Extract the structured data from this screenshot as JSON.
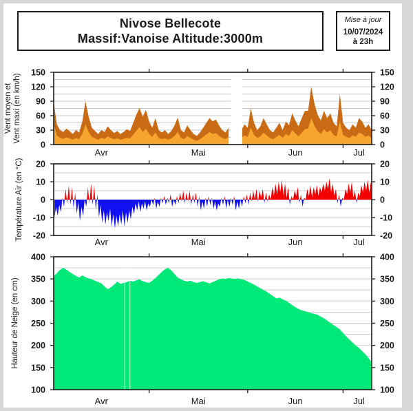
{
  "header": {
    "title_line1": "Nivose Bellecote",
    "title_line2": "Massif:Vanoise Altitude:3000m",
    "update_box": {
      "line1": "Mise à jour",
      "line2": "10/07/2024",
      "line3": "à 23h"
    }
  },
  "x_axis": {
    "month_labels": [
      "Avr",
      "Mai",
      "Jun",
      "Jul"
    ],
    "month_label_days": [
      15,
      45.5,
      76,
      96
    ],
    "month_tick_days": [
      30,
      61,
      91
    ],
    "domain_days": [
      0,
      101
    ],
    "start_date": "01/04",
    "end_date": "10/07"
  },
  "colors": {
    "wind_max": "#c96a14",
    "wind_mean": "#f6a52e",
    "temp_above": "#f40000",
    "temp_below": "#1010f0",
    "snow": "#00e878",
    "grid": "#c8c8c8",
    "frame": "#1b1b1b"
  },
  "chart_data": [
    {
      "type": "area",
      "title": "Vent moyen et Vent maxi (en km/h)",
      "ylabel_lines": [
        "Vent moyen et",
        "Vent maxi (en km/h)"
      ],
      "ylim": [
        0,
        150
      ],
      "ytick_step": 30,
      "grid_step": 15,
      "categories_unit": "day_index_from_Apr_1",
      "series": [
        {
          "name": "vent_maxi",
          "color_key": "wind_max",
          "values": [
            88,
            42,
            30,
            26,
            33,
            28,
            22,
            30,
            25,
            48,
            90,
            58,
            35,
            28,
            22,
            30,
            26,
            38,
            30,
            24,
            28,
            22,
            26,
            32,
            28,
            45,
            62,
            76,
            58,
            72,
            48,
            35,
            55,
            30,
            25,
            30,
            22,
            28,
            40,
            56,
            30,
            25,
            40,
            30,
            22,
            18,
            25,
            35,
            45,
            55,
            48,
            52,
            40,
            30,
            25,
            35,
            null,
            null,
            null,
            30,
            42,
            35,
            75,
            45,
            30,
            38,
            55,
            42,
            30,
            25,
            35,
            45,
            30,
            48,
            40,
            65,
            50,
            38,
            55,
            70,
            70,
            120,
            85,
            62,
            50,
            70,
            55,
            65,
            45,
            38,
            105,
            45,
            35,
            30,
            42,
            35,
            55,
            48,
            35,
            42,
            30
          ]
        },
        {
          "name": "vent_moyen",
          "color_key": "wind_mean",
          "values": [
            44,
            19,
            14,
            12,
            15,
            13,
            10,
            14,
            11,
            22,
            42,
            26,
            16,
            13,
            10,
            14,
            12,
            17,
            14,
            11,
            13,
            10,
            12,
            14,
            13,
            20,
            29,
            36,
            26,
            33,
            22,
            16,
            25,
            14,
            11,
            13,
            10,
            13,
            18,
            26,
            14,
            11,
            18,
            14,
            10,
            8,
            11,
            16,
            21,
            26,
            22,
            24,
            18,
            14,
            11,
            16,
            null,
            null,
            null,
            14,
            19,
            16,
            35,
            20,
            14,
            17,
            25,
            19,
            14,
            11,
            16,
            20,
            14,
            22,
            18,
            30,
            23,
            17,
            25,
            32,
            33,
            55,
            39,
            28,
            22,
            32,
            25,
            30,
            20,
            17,
            48,
            20,
            16,
            14,
            19,
            16,
            25,
            22,
            16,
            19,
            13
          ]
        }
      ]
    },
    {
      "type": "area_diverging",
      "title": "Température Air (en °C)",
      "ylabel_lines": [
        "Température Air (en °C)"
      ],
      "ylim": [
        -20,
        20
      ],
      "ytick_step": 10,
      "grid_step": 5,
      "zero_line": 0,
      "series": [
        {
          "name": "temp_min",
          "color_key": "temp_below",
          "values": [
            -10,
            -9,
            -7,
            -4,
            -2,
            -3,
            -5,
            -8,
            -12,
            -9,
            -4,
            -2,
            -3,
            -6,
            -10,
            -13,
            -14,
            -12,
            -15,
            -16,
            -15,
            -14,
            -15,
            -13,
            -11,
            -8,
            -6,
            -7,
            -5,
            -6,
            -4,
            -3,
            -5,
            -4,
            -2,
            -3,
            -2,
            -4,
            -3,
            -2,
            -1,
            -2,
            -1,
            -3,
            -2,
            -4,
            -6,
            -5,
            -4,
            -3,
            -5,
            -6,
            -4,
            -3,
            -5,
            -4,
            -3,
            -6,
            -5,
            -4,
            -2,
            -3,
            -1,
            0,
            -1,
            1,
            -2,
            -1,
            0,
            2,
            3,
            4,
            2,
            1,
            -3,
            0,
            2,
            -2,
            -4,
            0,
            2,
            1,
            3,
            2,
            4,
            5,
            6,
            4,
            2,
            -2,
            -4,
            0,
            3,
            4,
            1,
            -2,
            2,
            4,
            5,
            4,
            5
          ]
        },
        {
          "name": "temp_max",
          "color_key": "temp_above",
          "values": [
            -4,
            -3,
            1,
            6,
            8,
            7,
            4,
            -1,
            -4,
            0,
            7,
            9,
            8,
            3,
            -3,
            -6,
            -7,
            -5,
            -8,
            -9,
            -8,
            -6,
            -7,
            -6,
            -4,
            -2,
            -1,
            -2,
            -1,
            -2,
            0,
            1,
            -1,
            1,
            2,
            1,
            3,
            0,
            2,
            4,
            5,
            4,
            5,
            3,
            4,
            2,
            -1,
            1,
            2,
            1,
            -1,
            -2,
            1,
            2,
            0,
            1,
            2,
            -1,
            0,
            2,
            3,
            4,
            5,
            6,
            5,
            6,
            4,
            3,
            7,
            9,
            10,
            11,
            9,
            7,
            2,
            5,
            7,
            3,
            1,
            6,
            8,
            7,
            8,
            7,
            9,
            10,
            12,
            9,
            6,
            3,
            1,
            6,
            9,
            10,
            5,
            4,
            8,
            10,
            11,
            10,
            12
          ]
        }
      ]
    },
    {
      "type": "area",
      "title": "Hauteur de Neige (en cm)",
      "ylabel_lines": [
        "Hauteur de Neige (en cm)"
      ],
      "ylim": [
        100,
        400
      ],
      "ytick_step": 50,
      "grid_step": 25,
      "pale_column_days": [
        22.2,
        23.8
      ],
      "series": [
        {
          "name": "hauteur_neige",
          "color_key": "snow",
          "values": [
            356,
            363,
            371,
            375,
            371,
            366,
            361,
            357,
            353,
            358,
            354,
            351,
            349,
            346,
            343,
            340,
            333,
            327,
            331,
            337,
            344,
            339,
            341,
            343,
            346,
            344,
            347,
            349,
            345,
            343,
            341,
            346,
            352,
            359,
            366,
            372,
            375,
            369,
            361,
            353,
            349,
            346,
            344,
            346,
            343,
            341,
            343,
            345,
            342,
            340,
            343,
            346,
            349,
            351,
            350,
            352,
            351,
            350,
            351,
            349,
            348,
            344,
            341,
            337,
            333,
            329,
            325,
            321,
            316,
            311,
            306,
            308,
            304,
            301,
            296,
            291,
            286,
            282,
            279,
            277,
            275,
            273,
            271,
            269,
            265,
            261,
            256,
            251,
            246,
            241,
            236,
            228,
            220,
            213,
            206,
            200,
            194,
            187,
            180,
            171,
            162
          ]
        }
      ]
    }
  ]
}
